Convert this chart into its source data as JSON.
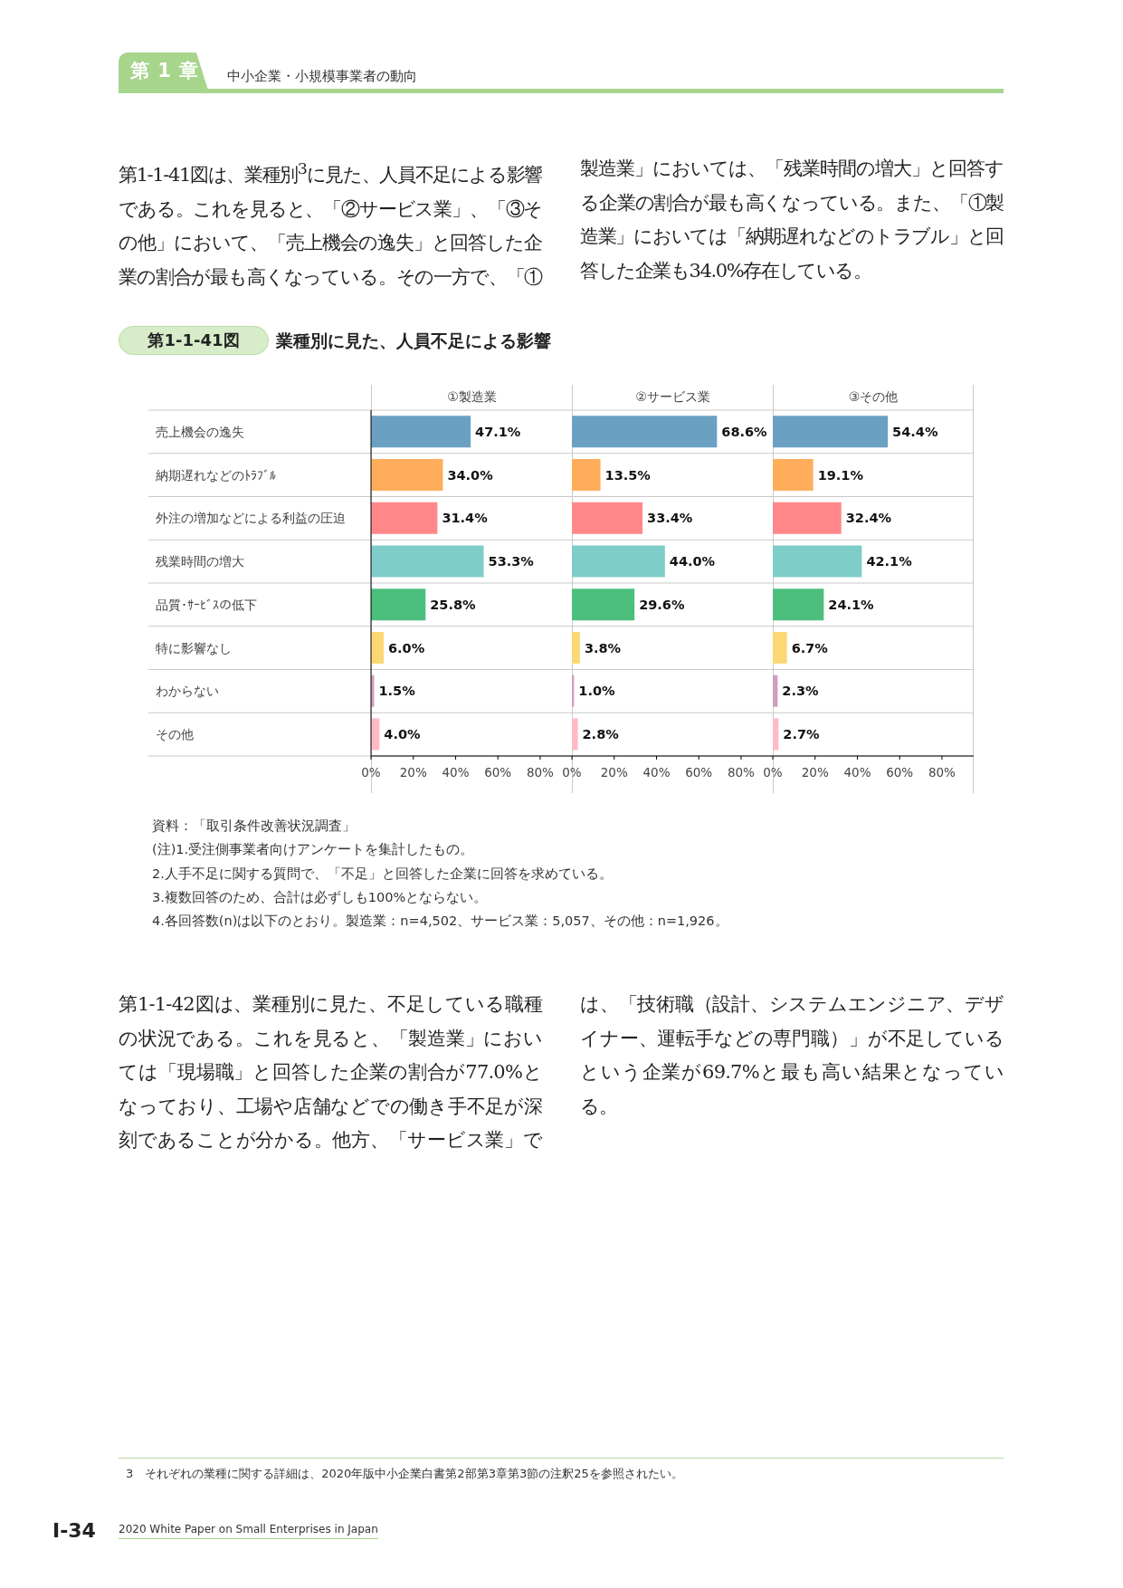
{
  "chart_data": [
    {
      "type": "other",
      "annotations": [
        "第 1 章",
        "中小企業・小規模事業者の動向",
        "第1-1-41図は、業種別$^{3}$に見た、人員不足による影響である。これを見ると、「②サービス業」、「③その他」において、「売上機会の逸失」と回答した企業の割合が最も高くなっている。その一方で、「①製造業」においては、「残業時間の増大」と回答する企業の割合が最も高くなっている。また、「①製造業」においては「納期遅れなどのトラブル」と回答した企業も34.0%存在している。",
        "第1-1-41図",
        "業種別に見た、人員不足による影響"
      ]
    },
    {
      "type": "bar",
      "orientation": "horizontal",
      "title": "①製造業",
      "categories": [
        "売上機会の逸失",
        "納期遅れなどのﾄﾗﾌﾞﾙ",
        "外注の増加などによる利益の圧迫",
        "残業時間の増大",
        "品質･ｻｰﾋﾞｽの低下",
        "特に影響なし",
        "わからない",
        "その他"
      ],
      "values": [
        47.1,
        34.0,
        31.4,
        53.3,
        25.8,
        6.0,
        1.5,
        4.0
      ],
      "colors": [
        "#6aa0c2",
        "#ffad5b",
        "#ff8789",
        "#7ecdc8",
        "#4bbf7b",
        "#fbd873",
        "#d09fc0",
        "#ffbac3"
      ],
      "value_labels": [
        "47.1%",
        "34.0%",
        "31.4%",
        "53.3%",
        "25.8%",
        "6.0%",
        "1.5%",
        "4.0%"
      ],
      "xlim": [
        0,
        95
      ],
      "xticks": [
        {
          "value": 0,
          "label": "0%"
        },
        {
          "value": 20,
          "label": "20%"
        },
        {
          "value": 40,
          "label": "40%"
        },
        {
          "value": 60,
          "label": "60%"
        },
        {
          "value": 80,
          "label": "80%"
        }
      ],
      "grid": "y"
    },
    {
      "type": "bar",
      "orientation": "horizontal",
      "title": "②サービス業",
      "categories": [
        null,
        null,
        null,
        null,
        null,
        null,
        null,
        null
      ],
      "values": [
        68.6,
        13.5,
        33.4,
        44.0,
        29.6,
        3.8,
        1.0,
        2.8
      ],
      "colors": [
        "#6aa0c2",
        "#ffad5b",
        "#ff8789",
        "#7ecdc8",
        "#4bbf7b",
        "#fbd873",
        "#d09fc0",
        "#ffbac3"
      ],
      "value_labels": [
        "68.6%",
        "13.5%",
        "33.4%",
        "44.0%",
        "29.6%",
        "3.8%",
        "1.0%",
        "2.8%"
      ],
      "xlim": [
        0,
        95
      ],
      "xticks": [
        {
          "value": 0,
          "label": "0%"
        },
        {
          "value": 20,
          "label": "20%"
        },
        {
          "value": 40,
          "label": "40%"
        },
        {
          "value": 60,
          "label": "60%"
        },
        {
          "value": 80,
          "label": "80%"
        }
      ],
      "grid": "y",
      "tick_labels": "x"
    },
    {
      "type": "bar",
      "orientation": "horizontal",
      "title": "③その他",
      "categories": [
        null,
        null,
        null,
        null,
        null,
        null,
        null,
        null
      ],
      "values": [
        54.4,
        19.1,
        32.4,
        42.1,
        24.1,
        6.7,
        2.3,
        2.7
      ],
      "colors": [
        "#6aa0c2",
        "#ffad5b",
        "#ff8789",
        "#7ecdc8",
        "#4bbf7b",
        "#fbd873",
        "#d09fc0",
        "#ffbac3"
      ],
      "value_labels": [
        "54.4%",
        "19.1%",
        "32.4%",
        "42.1%",
        "24.1%",
        "6.7%",
        "2.3%",
        "2.7%"
      ],
      "xlim": [
        0,
        95
      ],
      "xticks": [
        {
          "value": 0,
          "label": "0%"
        },
        {
          "value": 20,
          "label": "20%"
        },
        {
          "value": 40,
          "label": "40%"
        },
        {
          "value": 60,
          "label": "60%"
        },
        {
          "value": 80,
          "label": "80%"
        }
      ],
      "grid": "y",
      "tick_labels": "x"
    },
    {
      "type": "other",
      "annotations": [
        "資料：「取引条件改善状況調査」",
        "(注)1.受注側事業者向けアンケートを集計したもの。",
        "2.人手不足に関する質問で、「不足」と回答した企業に回答を求めている。",
        "3.複数回答のため、合計は必ずしも100%とならない。",
        "4.各回答数(n)は以下のとおり。製造業：n=4,502、サービス業：5,057、その他：n=1,926。",
        "第1-1-42図は、業種別に見た、不足している職種の状況である。これを見ると、「製造業」においては「現場職」と回答した企業の割合が77.0%となっており、工場や店舗などでの働き手不足が深刻であることが分かる。他方、「サービス業」では、「技術職（設計、システムエンジニア、デザイナー、運転手などの専門職）」が不足しているという企業が69.7%と最も高い結果となっている。",
        "3　それぞれの業種に関する詳細は、2020年版中小企業白書第2部第3章第3節の注釈25を参照されたい。",
        "Ⅰ-34",
        "2020 White Paper on Small Enterprises in Japan"
      ]
    }
  ]
}
